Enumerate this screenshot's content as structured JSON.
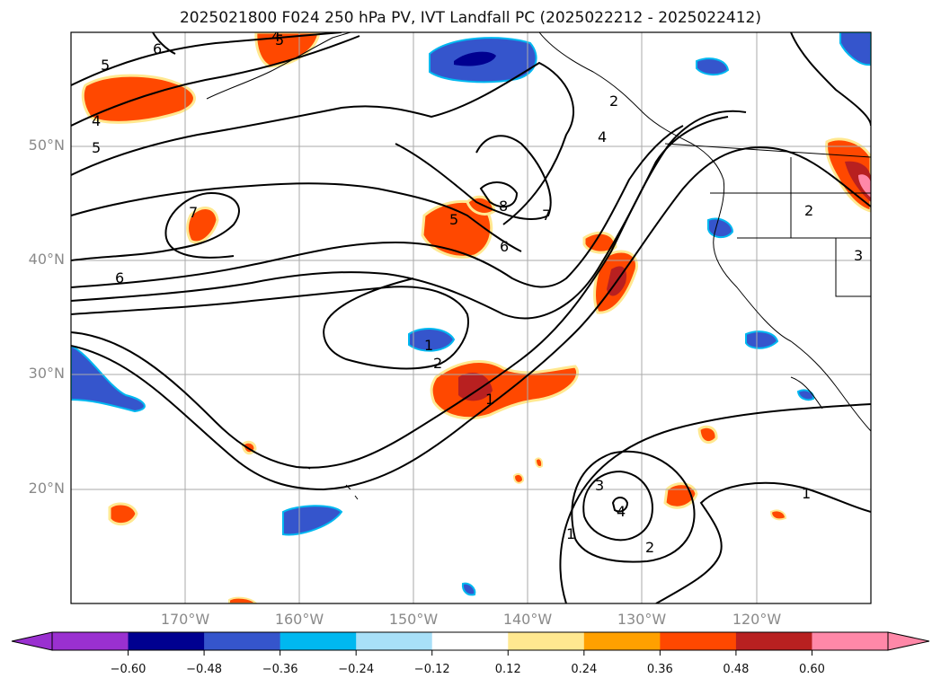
{
  "title": "2025021800 F024 250 hPa PV, IVT Landfall PC (2025022212 - 2025022412)",
  "lat_labels": [
    "50°N",
    "40°N",
    "30°N",
    "20°N"
  ],
  "lon_labels": [
    "170°W",
    "160°W",
    "150°W",
    "140°W",
    "130°W",
    "120°W"
  ],
  "colorbar": {
    "ticks": [
      "−0.60",
      "−0.48",
      "−0.36",
      "−0.24",
      "−0.12",
      "0.12",
      "0.24",
      "0.36",
      "0.48",
      "0.60"
    ],
    "colors": [
      "#9a30d0",
      "#000090",
      "#3555cc",
      "#00b8f0",
      "#a8e0f8",
      "#ffffff",
      "#ffe890",
      "#ffa000",
      "#ff4800",
      "#b82020",
      "#ff88a8"
    ]
  },
  "contour_labels": [
    "6",
    "5",
    "4",
    "5",
    "4",
    "5",
    "7",
    "6",
    "5",
    "8",
    "7",
    "6",
    "4",
    "2",
    "1",
    "2",
    "1",
    "3",
    "4",
    "1",
    "2",
    "1",
    "2",
    "3"
  ]
}
